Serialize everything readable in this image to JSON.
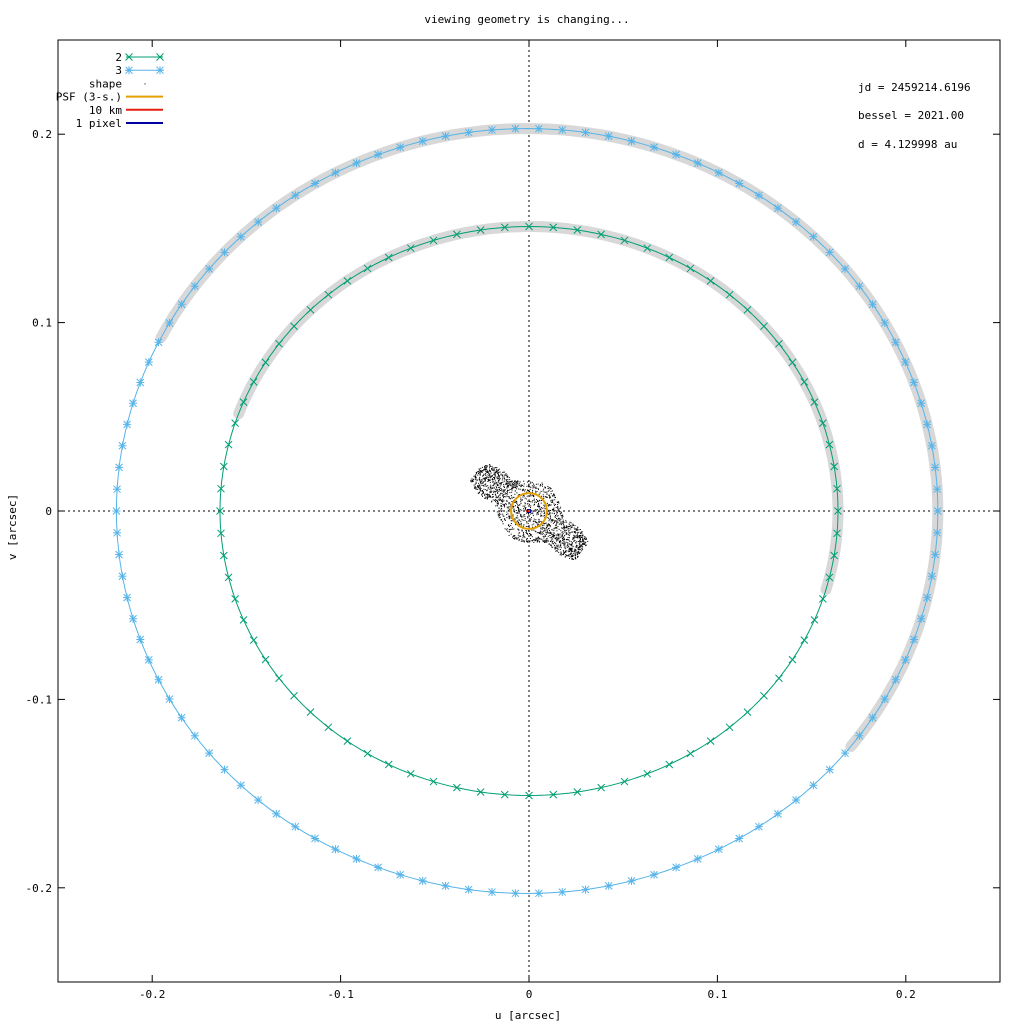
{
  "chart_data": {
    "type": "scatter",
    "title": "viewing geometry is changing...",
    "xlabel": "u [arcsec]",
    "ylabel": "v [arcsec]",
    "xlim": [
      -0.25,
      0.25
    ],
    "ylim": [
      -0.25,
      0.25
    ],
    "x_ticks": [
      -0.2,
      -0.1,
      0,
      0.1,
      0.2
    ],
    "x_tick_labels": [
      "-0.2",
      "-0.1",
      "0",
      "0.1",
      "0.2"
    ],
    "y_ticks": [
      -0.2,
      -0.1,
      0,
      0.1,
      0.2
    ],
    "y_tick_labels": [
      "-0.2",
      "-0.1",
      "0",
      "0.1",
      "0.2"
    ],
    "grid": false,
    "zero_axes": "dotted",
    "legend_position": "top-left",
    "legend": [
      {
        "label": "2",
        "style": "line-x",
        "color": "#009e73"
      },
      {
        "label": "3",
        "style": "line-star",
        "color": "#56b4e9"
      },
      {
        "label": "shape",
        "style": "dot",
        "color": "#000000"
      },
      {
        "label": "PSF (3-s.)",
        "style": "line",
        "color": "#e69f00"
      },
      {
        "label": "10 km",
        "style": "line",
        "color": "#e51e10"
      },
      {
        "label": "1 pixel",
        "style": "line",
        "color": "#0000a0"
      }
    ],
    "annotations": [
      {
        "text": "jd = 2459214.6196"
      },
      {
        "text": "bessel = 2021.00"
      },
      {
        "text": "d = 4.129998 au"
      }
    ],
    "series": [
      {
        "name": "2",
        "color": "#009e73",
        "marker": "x",
        "orbit": {
          "center": [
            0.0,
            0.0
          ],
          "a": 0.164,
          "b": 0.151,
          "samples": 80
        },
        "highlight_from_angle_deg": 20,
        "highlight_to_angle_deg": 196
      },
      {
        "name": "3",
        "color": "#56b4e9",
        "marker": "star",
        "orbit": {
          "center": [
            -0.001,
            0.0
          ],
          "a": 0.218,
          "b": 0.203,
          "samples": 110
        },
        "highlight_from_angle_deg": 27,
        "highlight_to_angle_deg": 218
      }
    ],
    "shape": {
      "color": "#000000",
      "axis_start": [
        -0.028,
        0.021
      ],
      "axis_end": [
        0.028,
        -0.021
      ],
      "halfwidth": 0.0105,
      "points": 1800
    },
    "psf": {
      "center": [
        0.0,
        0.0
      ],
      "radius": 0.0095,
      "color": "#e69f00"
    },
    "scale_bar_10km": {
      "from": [
        -0.0015,
        0.0
      ],
      "to": [
        0.0015,
        0.0
      ],
      "color": "#e51e10"
    },
    "pixel_marker": {
      "center": [
        0.0,
        0.0
      ],
      "color": "#0000a0"
    },
    "highlight_color": "#d8d8d8"
  }
}
